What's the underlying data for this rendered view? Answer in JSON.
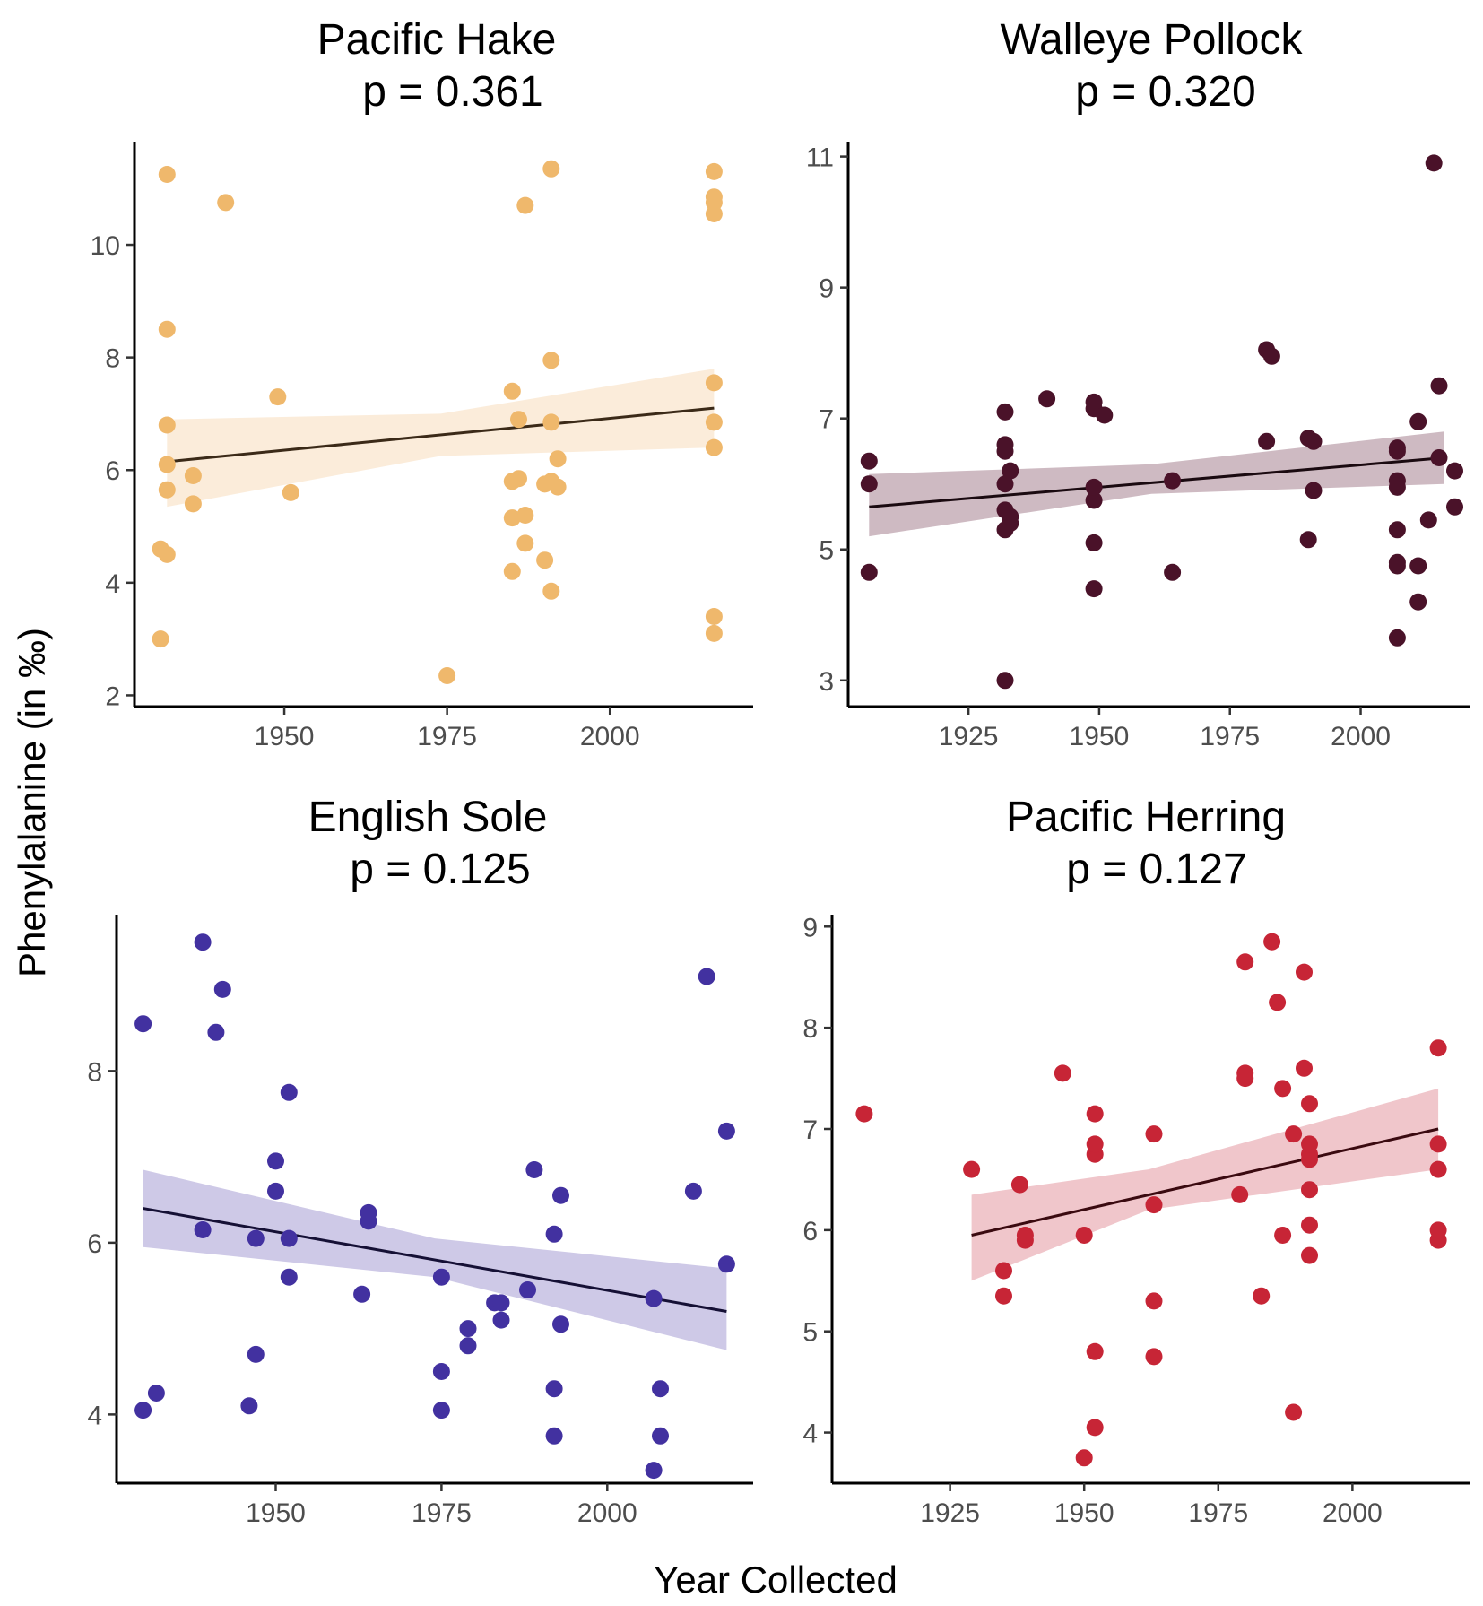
{
  "figure": {
    "xlabel": "Year Collected",
    "ylabel": "Phenylalanine (in ‰)"
  },
  "chart_data": [
    {
      "type": "scatter",
      "title": "Pacific Hake",
      "subtitle": "p = 0.361",
      "color": "#efb86c",
      "band_color": "#fae9d4",
      "line_color": "#3b2a18",
      "xlim": [
        1927,
        2022
      ],
      "ylim": [
        1.8,
        11.8
      ],
      "xticks": [
        1950,
        1975,
        2000
      ],
      "yticks": [
        2,
        4,
        6,
        8,
        10
      ],
      "trend": {
        "x": [
          1932,
          2016
        ],
        "y": [
          6.15,
          7.1
        ]
      },
      "band": {
        "x": [
          1932,
          1974,
          2016
        ],
        "lower": [
          5.35,
          6.25,
          6.4
        ],
        "upper": [
          6.9,
          7.0,
          7.8
        ]
      },
      "points": [
        {
          "x": 1931,
          "y": 3.0
        },
        {
          "x": 1931,
          "y": 4.6
        },
        {
          "x": 1932,
          "y": 4.5
        },
        {
          "x": 1932,
          "y": 5.65
        },
        {
          "x": 1932,
          "y": 6.1
        },
        {
          "x": 1932,
          "y": 6.8
        },
        {
          "x": 1932,
          "y": 8.5
        },
        {
          "x": 1932,
          "y": 11.25
        },
        {
          "x": 1936,
          "y": 5.4
        },
        {
          "x": 1936,
          "y": 5.9
        },
        {
          "x": 1941,
          "y": 10.75
        },
        {
          "x": 1949,
          "y": 7.3
        },
        {
          "x": 1951,
          "y": 5.6
        },
        {
          "x": 1975,
          "y": 2.35
        },
        {
          "x": 1985,
          "y": 4.2
        },
        {
          "x": 1985,
          "y": 5.15
        },
        {
          "x": 1985,
          "y": 5.8
        },
        {
          "x": 1985,
          "y": 7.4
        },
        {
          "x": 1986,
          "y": 5.85
        },
        {
          "x": 1986,
          "y": 6.9
        },
        {
          "x": 1987,
          "y": 4.7
        },
        {
          "x": 1987,
          "y": 5.2
        },
        {
          "x": 1987,
          "y": 10.7
        },
        {
          "x": 1990,
          "y": 4.4
        },
        {
          "x": 1990,
          "y": 5.75
        },
        {
          "x": 1991,
          "y": 3.85
        },
        {
          "x": 1991,
          "y": 5.8
        },
        {
          "x": 1991,
          "y": 6.85
        },
        {
          "x": 1991,
          "y": 7.95
        },
        {
          "x": 1991,
          "y": 11.35
        },
        {
          "x": 1992,
          "y": 5.7
        },
        {
          "x": 1992,
          "y": 6.2
        },
        {
          "x": 2016,
          "y": 3.1
        },
        {
          "x": 2016,
          "y": 3.4
        },
        {
          "x": 2016,
          "y": 6.4
        },
        {
          "x": 2016,
          "y": 6.85
        },
        {
          "x": 2016,
          "y": 7.55
        },
        {
          "x": 2016,
          "y": 10.55
        },
        {
          "x": 2016,
          "y": 10.75
        },
        {
          "x": 2016,
          "y": 10.85
        },
        {
          "x": 2016,
          "y": 11.3
        }
      ]
    },
    {
      "type": "scatter",
      "title": "Walleye Pollock",
      "subtitle": "p = 0.320",
      "color": "#4a1229",
      "band_color": "#c6aeb7",
      "line_color": "#1a0a10",
      "xlim": [
        1902,
        2021
      ],
      "ylim": [
        2.6,
        11.2
      ],
      "xticks": [
        1925,
        1950,
        1975,
        2000
      ],
      "yticks": [
        3,
        5,
        7,
        9,
        11
      ],
      "trend": {
        "x": [
          1906,
          2016
        ],
        "y": [
          5.65,
          6.4
        ]
      },
      "band": {
        "x": [
          1906,
          1960,
          2016
        ],
        "lower": [
          5.2,
          5.85,
          6.0
        ],
        "upper": [
          6.15,
          6.3,
          6.8
        ]
      },
      "points": [
        {
          "x": 1906,
          "y": 4.65
        },
        {
          "x": 1906,
          "y": 6.0
        },
        {
          "x": 1906,
          "y": 6.35
        },
        {
          "x": 1932,
          "y": 3.0
        },
        {
          "x": 1932,
          "y": 5.3
        },
        {
          "x": 1932,
          "y": 5.6
        },
        {
          "x": 1932,
          "y": 6.0
        },
        {
          "x": 1932,
          "y": 6.5
        },
        {
          "x": 1932,
          "y": 6.6
        },
        {
          "x": 1932,
          "y": 7.1
        },
        {
          "x": 1933,
          "y": 5.4
        },
        {
          "x": 1933,
          "y": 5.5
        },
        {
          "x": 1933,
          "y": 6.2
        },
        {
          "x": 1940,
          "y": 7.3
        },
        {
          "x": 1949,
          "y": 4.4
        },
        {
          "x": 1949,
          "y": 5.1
        },
        {
          "x": 1949,
          "y": 5.75
        },
        {
          "x": 1949,
          "y": 5.95
        },
        {
          "x": 1949,
          "y": 7.15
        },
        {
          "x": 1949,
          "y": 7.25
        },
        {
          "x": 1951,
          "y": 7.05
        },
        {
          "x": 1964,
          "y": 4.65
        },
        {
          "x": 1964,
          "y": 6.05
        },
        {
          "x": 1982,
          "y": 6.65
        },
        {
          "x": 1982,
          "y": 8.05
        },
        {
          "x": 1983,
          "y": 7.95
        },
        {
          "x": 1990,
          "y": 5.15
        },
        {
          "x": 1990,
          "y": 6.7
        },
        {
          "x": 1991,
          "y": 5.9
        },
        {
          "x": 1991,
          "y": 6.65
        },
        {
          "x": 2007,
          "y": 3.65
        },
        {
          "x": 2007,
          "y": 4.75
        },
        {
          "x": 2007,
          "y": 4.8
        },
        {
          "x": 2007,
          "y": 5.3
        },
        {
          "x": 2007,
          "y": 5.95
        },
        {
          "x": 2007,
          "y": 6.05
        },
        {
          "x": 2007,
          "y": 6.5
        },
        {
          "x": 2007,
          "y": 6.55
        },
        {
          "x": 2011,
          "y": 6.95
        },
        {
          "x": 2011,
          "y": 4.2
        },
        {
          "x": 2011,
          "y": 4.75
        },
        {
          "x": 2013,
          "y": 5.45
        },
        {
          "x": 2014,
          "y": 10.9
        },
        {
          "x": 2015,
          "y": 6.4
        },
        {
          "x": 2015,
          "y": 7.5
        },
        {
          "x": 2018,
          "y": 5.65
        },
        {
          "x": 2018,
          "y": 6.2
        }
      ]
    },
    {
      "type": "scatter",
      "title": "English Sole",
      "subtitle": "p = 0.125",
      "color": "#4231a0",
      "band_color": "#c5bfe3",
      "line_color": "#151035",
      "xlim": [
        1926,
        2022
      ],
      "ylim": [
        3.2,
        9.8
      ],
      "xticks": [
        1950,
        1975,
        2000
      ],
      "yticks": [
        4,
        6,
        8
      ],
      "trend": {
        "x": [
          1930,
          2018
        ],
        "y": [
          6.4,
          5.2
        ]
      },
      "band": {
        "x": [
          1930,
          1974,
          2018
        ],
        "lower": [
          5.95,
          5.6,
          4.75
        ],
        "upper": [
          6.85,
          6.05,
          5.7
        ]
      },
      "points": [
        {
          "x": 1930,
          "y": 4.05
        },
        {
          "x": 1930,
          "y": 8.55
        },
        {
          "x": 1932,
          "y": 4.25
        },
        {
          "x": 1939,
          "y": 6.15
        },
        {
          "x": 1939,
          "y": 9.5
        },
        {
          "x": 1941,
          "y": 8.45
        },
        {
          "x": 1942,
          "y": 8.95
        },
        {
          "x": 1946,
          "y": 4.1
        },
        {
          "x": 1947,
          "y": 4.7
        },
        {
          "x": 1947,
          "y": 6.05
        },
        {
          "x": 1950,
          "y": 6.6
        },
        {
          "x": 1950,
          "y": 6.95
        },
        {
          "x": 1952,
          "y": 5.6
        },
        {
          "x": 1952,
          "y": 6.05
        },
        {
          "x": 1952,
          "y": 7.75
        },
        {
          "x": 1963,
          "y": 5.4
        },
        {
          "x": 1964,
          "y": 6.25
        },
        {
          "x": 1964,
          "y": 6.35
        },
        {
          "x": 1975,
          "y": 4.05
        },
        {
          "x": 1975,
          "y": 4.5
        },
        {
          "x": 1975,
          "y": 5.6
        },
        {
          "x": 1979,
          "y": 4.8
        },
        {
          "x": 1979,
          "y": 5.0
        },
        {
          "x": 1983,
          "y": 5.3
        },
        {
          "x": 1984,
          "y": 5.1
        },
        {
          "x": 1984,
          "y": 5.3
        },
        {
          "x": 1988,
          "y": 5.45
        },
        {
          "x": 1989,
          "y": 6.85
        },
        {
          "x": 1992,
          "y": 3.75
        },
        {
          "x": 1992,
          "y": 4.3
        },
        {
          "x": 1992,
          "y": 6.1
        },
        {
          "x": 1993,
          "y": 5.05
        },
        {
          "x": 1993,
          "y": 6.55
        },
        {
          "x": 2007,
          "y": 3.35
        },
        {
          "x": 2007,
          "y": 5.35
        },
        {
          "x": 2008,
          "y": 3.75
        },
        {
          "x": 2008,
          "y": 4.3
        },
        {
          "x": 2013,
          "y": 6.6
        },
        {
          "x": 2015,
          "y": 9.1
        },
        {
          "x": 2018,
          "y": 5.75
        },
        {
          "x": 2018,
          "y": 7.3
        }
      ]
    },
    {
      "type": "scatter",
      "title": "Pacific Herring",
      "subtitle": "p = 0.127",
      "color": "#c72536",
      "band_color": "#edbcc2",
      "line_color": "#3a0a10",
      "xlim": [
        1903,
        2022
      ],
      "ylim": [
        3.5,
        9.1
      ],
      "xticks": [
        1925,
        1950,
        1975,
        2000
      ],
      "yticks": [
        4,
        5,
        6,
        7,
        8,
        9
      ],
      "trend": {
        "x": [
          1929,
          2016
        ],
        "y": [
          5.95,
          7.0
        ]
      },
      "band": {
        "x": [
          1929,
          1962,
          2016
        ],
        "lower": [
          5.5,
          6.2,
          6.6
        ],
        "upper": [
          6.35,
          6.6,
          7.4
        ]
      },
      "points": [
        {
          "x": 1909,
          "y": 7.15
        },
        {
          "x": 1929,
          "y": 6.6
        },
        {
          "x": 1935,
          "y": 5.35
        },
        {
          "x": 1935,
          "y": 5.6
        },
        {
          "x": 1938,
          "y": 6.45
        },
        {
          "x": 1939,
          "y": 5.9
        },
        {
          "x": 1939,
          "y": 5.95
        },
        {
          "x": 1946,
          "y": 7.55
        },
        {
          "x": 1950,
          "y": 3.75
        },
        {
          "x": 1950,
          "y": 5.95
        },
        {
          "x": 1952,
          "y": 4.05
        },
        {
          "x": 1952,
          "y": 4.8
        },
        {
          "x": 1952,
          "y": 6.75
        },
        {
          "x": 1952,
          "y": 6.85
        },
        {
          "x": 1952,
          "y": 7.15
        },
        {
          "x": 1963,
          "y": 4.75
        },
        {
          "x": 1963,
          "y": 5.3
        },
        {
          "x": 1963,
          "y": 6.25
        },
        {
          "x": 1963,
          "y": 6.95
        },
        {
          "x": 1979,
          "y": 6.35
        },
        {
          "x": 1980,
          "y": 7.5
        },
        {
          "x": 1980,
          "y": 7.55
        },
        {
          "x": 1980,
          "y": 8.65
        },
        {
          "x": 1983,
          "y": 5.35
        },
        {
          "x": 1985,
          "y": 8.85
        },
        {
          "x": 1986,
          "y": 8.25
        },
        {
          "x": 1987,
          "y": 5.95
        },
        {
          "x": 1987,
          "y": 7.4
        },
        {
          "x": 1989,
          "y": 4.2
        },
        {
          "x": 1989,
          "y": 6.95
        },
        {
          "x": 1991,
          "y": 7.6
        },
        {
          "x": 1991,
          "y": 8.55
        },
        {
          "x": 1992,
          "y": 5.75
        },
        {
          "x": 1992,
          "y": 6.05
        },
        {
          "x": 1992,
          "y": 6.4
        },
        {
          "x": 1992,
          "y": 6.7
        },
        {
          "x": 1992,
          "y": 6.75
        },
        {
          "x": 1992,
          "y": 6.85
        },
        {
          "x": 1992,
          "y": 7.25
        },
        {
          "x": 2016,
          "y": 5.9
        },
        {
          "x": 2016,
          "y": 6.0
        },
        {
          "x": 2016,
          "y": 6.6
        },
        {
          "x": 2016,
          "y": 6.85
        },
        {
          "x": 2016,
          "y": 7.8
        }
      ]
    }
  ]
}
